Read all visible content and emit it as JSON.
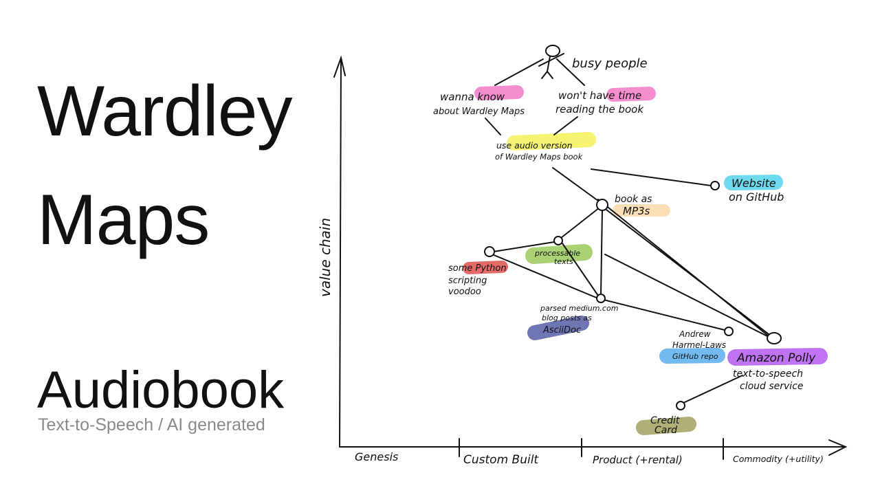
{
  "slide": {
    "title_line1": "Wardley",
    "title_line2": "Maps",
    "subtitle": "Audiobook",
    "caption": "Text-to-Speech / AI generated"
  },
  "map": {
    "y_axis_label": "value chain",
    "stages": [
      "Genesis",
      "Custom Built",
      "Product (+rental)",
      "Commodity (+utility)"
    ],
    "user": "busy people",
    "needs": [
      {
        "id": "know",
        "line1": "wanna know",
        "line2": "about Wardley Maps",
        "highlight": "#f27ac6"
      },
      {
        "id": "time",
        "line1": "won't have time",
        "line2": "reading the book",
        "highlight": "#f27ac6"
      }
    ],
    "audio": {
      "line1": "use audio version",
      "line2": "of Wardley Maps book",
      "highlight": "#f3f25a"
    },
    "website": {
      "line1": "Website",
      "line2": "on GitHub",
      "highlight": "#56d4ea"
    },
    "mp3": {
      "line1": "book as",
      "line2": "MP3s",
      "highlight": "#f9d8a8"
    },
    "texts": {
      "line1": "processable",
      "line2": "texts",
      "highlight": "#9ccb5c"
    },
    "python": {
      "line1": "some Python",
      "line2": "scripting",
      "line3": "voodoo",
      "highlight": "#e0524e"
    },
    "parsed": {
      "line1": "parsed medium.com",
      "line2": "blog posts as",
      "line3": "AsciiDoc",
      "highlight": "#5560a8"
    },
    "andrew": {
      "line1": "Andrew",
      "line2": "Harmel-Laws",
      "line3": "GitHub repo",
      "highlight": "#5aaeee"
    },
    "polly": {
      "line1": "Amazon Polly",
      "line2": "text-to-speech",
      "line3": "cloud service",
      "highlight": "#b55af0"
    },
    "credit": {
      "line1": "Credit",
      "line2": "Card",
      "highlight": "#a3a260"
    }
  }
}
